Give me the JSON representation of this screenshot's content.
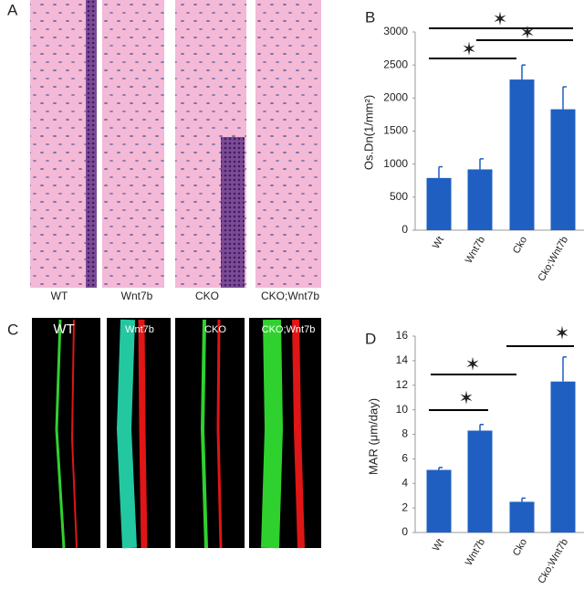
{
  "panels": [
    {
      "letter": "A",
      "captions": [
        "WT",
        "Wnt7b",
        "CKO",
        "CKO;Wnt7b"
      ]
    },
    {
      "letter": "C",
      "captions": [
        "WT",
        "Wnt7b",
        "CKO",
        "CKO;Wnt7b"
      ]
    }
  ],
  "chart_data": [
    {
      "type": "bar",
      "panel_label": "B",
      "y_label": "Os.Dn(1/mm²)",
      "categories": [
        "Wt",
        "Wnt7b",
        "Cko",
        "Cko;Wnt7b"
      ],
      "values": [
        790,
        920,
        2280,
        1830
      ],
      "errors": [
        170,
        160,
        220,
        340
      ],
      "color": "#1f5fc1",
      "ylim": [
        0,
        3000
      ],
      "yticks": [
        0,
        500,
        1000,
        1500,
        2000,
        2500,
        3000
      ],
      "annotations": [
        "✶",
        "✶",
        "✶"
      ]
    },
    {
      "type": "bar",
      "panel_label": "D",
      "y_label": "MAR (μm/day)",
      "categories": [
        "Wt",
        "Wnt7b",
        "Cko",
        "Cko;Wnt7b"
      ],
      "values": [
        5.1,
        8.3,
        2.5,
        12.3
      ],
      "errors": [
        0.2,
        0.5,
        0.3,
        2.0
      ],
      "color": "#1f5fc1",
      "ylim": [
        0,
        16
      ],
      "yticks": [
        0,
        2,
        4,
        6,
        8,
        10,
        12,
        14,
        16
      ],
      "annotations": [
        "✶",
        "✶",
        "✶"
      ]
    }
  ]
}
